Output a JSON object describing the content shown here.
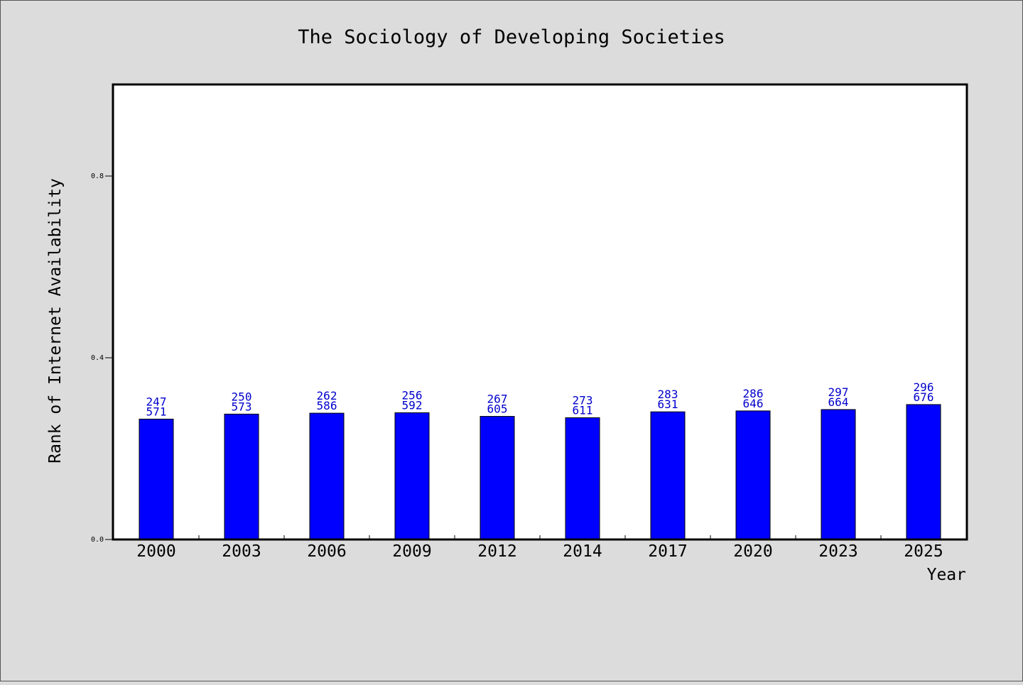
{
  "chart_data": {
    "type": "bar",
    "title": "The Sociology of Developing Societies",
    "xlabel": "Year",
    "ylabel": "Rank of Internet Availability",
    "categories": [
      "2000",
      "2003",
      "2006",
      "2009",
      "2012",
      "2014",
      "2017",
      "2020",
      "2023",
      "2025"
    ],
    "values": [
      0.265,
      0.276,
      0.278,
      0.279,
      0.271,
      0.268,
      0.281,
      0.283,
      0.286,
      0.297
    ],
    "labels_top": [
      "247",
      "250",
      "262",
      "256",
      "267",
      "273",
      "283",
      "286",
      "297",
      "296"
    ],
    "labels_bottom": [
      "571",
      "573",
      "586",
      "592",
      "605",
      "611",
      "631",
      "646",
      "664",
      "676"
    ],
    "ylim": [
      0,
      1.0
    ],
    "yticks": [
      0.0,
      0.4,
      0.8
    ],
    "ytick_labels": [
      "0.0",
      "0.4",
      "0.8"
    ],
    "grid": false,
    "legend": "none",
    "colors": {
      "bar": "#0000ff",
      "label": "#0000cc",
      "background": "#dcdcdc",
      "plot_background": "#ffffff"
    }
  }
}
